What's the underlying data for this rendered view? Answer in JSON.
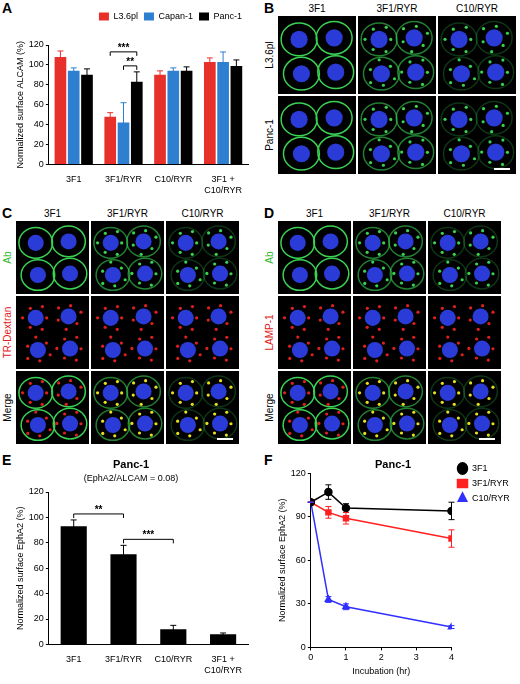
{
  "chart_data": [
    {
      "panel": "A",
      "type": "bar",
      "y_label": "Normalized surface ALCAM (%)",
      "categories": [
        "3F1",
        "3F1/RYR",
        "C10/RYR",
        "3F1 + C10/RYR"
      ],
      "series": [
        {
          "name": "L3.6pl",
          "color": "#e8302a",
          "values": [
            108,
            48,
            90,
            103
          ],
          "errors": [
            6,
            4,
            4,
            4
          ]
        },
        {
          "name": "Capan-1",
          "color": "#2f7fd0",
          "values": [
            94,
            42,
            94,
            103
          ],
          "errors": [
            3,
            20,
            3,
            10
          ]
        },
        {
          "name": "Panc-1",
          "color": "#000000",
          "values": [
            90,
            83,
            94,
            99
          ],
          "errors": [
            6,
            10,
            4,
            6
          ]
        }
      ],
      "ylim": [
        0,
        120
      ],
      "yticks": [
        0,
        20,
        40,
        60,
        80,
        100,
        120
      ],
      "grid": false,
      "legend": "top",
      "annotations": [
        {
          "text": "**",
          "category": "3F1/RYR",
          "series": [
            "Capan-1",
            "Panc-1"
          ]
        },
        {
          "text": "***",
          "category": "3F1/RYR",
          "series": [
            "L3.6pl",
            "Panc-1"
          ]
        }
      ]
    },
    {
      "panel": "E",
      "type": "bar",
      "title": "Panc-1",
      "subtitle": "(EphA2/ALCAM = 0.08)",
      "y_label": "Normalized surface EphA2 (%)",
      "categories": [
        "3F1",
        "3F1/RYR",
        "C10/RYR",
        "3F1 + C10/RYR"
      ],
      "values": [
        93,
        71,
        12,
        8
      ],
      "errors": [
        5,
        7,
        3,
        1
      ],
      "color": "#000000",
      "ylim": [
        0,
        120
      ],
      "yticks": [
        0,
        20,
        40,
        60,
        80,
        100,
        120
      ],
      "grid": false,
      "annotations": [
        {
          "text": "**",
          "categories": [
            "3F1",
            "3F1/RYR"
          ]
        },
        {
          "text": "***",
          "categories": [
            "3F1/RYR",
            "C10/RYR"
          ]
        }
      ]
    },
    {
      "panel": "F",
      "type": "line",
      "title": "Panc-1",
      "x_label": "Incubation (hr)",
      "y_label": "Normalized surface EphA2 (%)",
      "x": [
        0,
        0.5,
        1,
        4
      ],
      "xlim": [
        0,
        4
      ],
      "xticks": [
        0,
        1,
        2,
        3,
        4
      ],
      "ylim": [
        0,
        120
      ],
      "yticks": [
        0,
        30,
        60,
        90,
        120
      ],
      "grid": false,
      "legend": "right",
      "series": [
        {
          "name": "3F1",
          "color": "#000000",
          "marker": "circle",
          "line_style": "solid",
          "values": [
            100,
            107,
            96,
            94
          ],
          "errors": [
            0,
            5,
            3,
            6
          ]
        },
        {
          "name": "3F1/RYR",
          "color": "#ff2020",
          "marker": "square",
          "line_style": "solid",
          "values": [
            100,
            93,
            89,
            75
          ],
          "errors": [
            0,
            4,
            4,
            6
          ]
        },
        {
          "name": "C10/RYR",
          "color": "#3030ff",
          "marker": "triangle",
          "line_style": "solid",
          "values": [
            100,
            33,
            28,
            14
          ],
          "errors": [
            0,
            2,
            2,
            1
          ]
        }
      ]
    }
  ],
  "images": [
    {
      "panel": "B",
      "columns": [
        "3F1",
        "3F1/RYR",
        "C10/RYR"
      ],
      "rows": [
        {
          "label": "L3.6pl",
          "color": "#000000"
        },
        {
          "label": "Panc-1",
          "color": "#000000"
        }
      ]
    },
    {
      "panel": "C",
      "columns": [
        "3F1",
        "3F1/RYR",
        "C10/RYR"
      ],
      "rows": [
        {
          "label": "Ab",
          "color": "#2db82d"
        },
        {
          "label": "TR-Dextran",
          "color": "#e02020"
        },
        {
          "label": "Merge",
          "color": "#000000"
        }
      ]
    },
    {
      "panel": "D",
      "columns": [
        "3F1",
        "3F1/RYR",
        "C10/RYR"
      ],
      "rows": [
        {
          "label": "Ab",
          "color": "#2db82d"
        },
        {
          "label": "LAMP-1",
          "color": "#e02020"
        },
        {
          "label": "Merge",
          "color": "#000000"
        }
      ]
    }
  ]
}
